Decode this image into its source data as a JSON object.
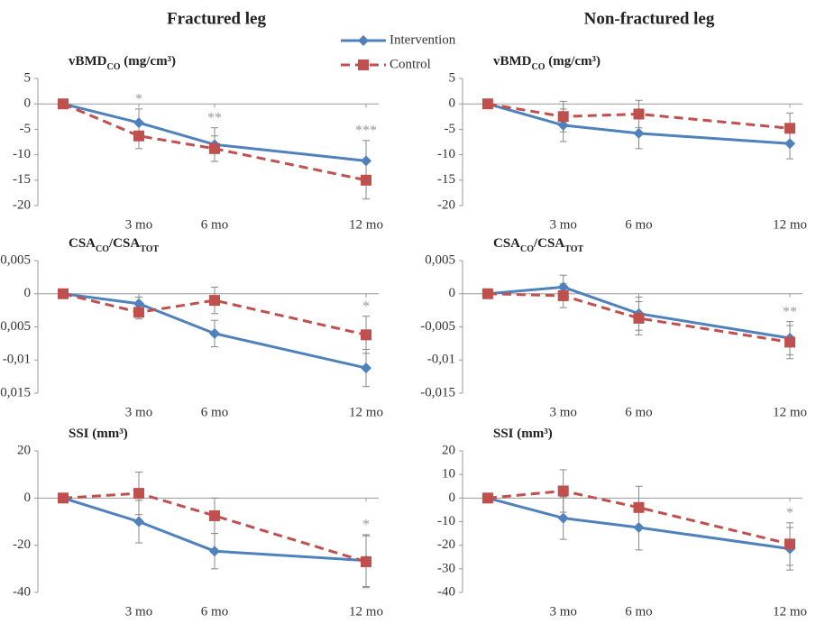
{
  "columns": [
    "Fractured leg",
    "Non-fractured leg"
  ],
  "chart_data": [
    {
      "type": "line",
      "title": [
        "vBMD",
        "CO",
        " (mg/cm³)"
      ],
      "x": [
        0,
        3,
        6,
        12
      ],
      "xlim": [
        -1,
        12.5
      ],
      "xticks": [
        {
          "value": 3,
          "label": "3 mo"
        },
        {
          "value": 6,
          "label": "6 mo"
        },
        {
          "value": 12,
          "label": "12 mo"
        }
      ],
      "ylim": [
        -20,
        5
      ],
      "yticks": [
        5,
        0,
        -5,
        -10,
        -15,
        -20
      ],
      "series": [
        {
          "name": "Intervention",
          "color": "#4f81bd",
          "marker": "diamond",
          "dash": false,
          "values": [
            0,
            -3.7,
            -8,
            -11.2
          ],
          "errors": [
            0,
            2.7,
            3.3,
            4
          ]
        },
        {
          "name": "Control",
          "color": "#c0504d",
          "marker": "square",
          "dash": true,
          "values": [
            0,
            -6.3,
            -8.8,
            -15
          ],
          "errors": [
            0,
            2.5,
            2.5,
            3.7
          ]
        }
      ],
      "annotations": [
        null,
        "*",
        "**",
        "***"
      ]
    },
    {
      "type": "line",
      "title": [
        "vBMD",
        "CO",
        " (mg/cm³)"
      ],
      "x": [
        0,
        3,
        6,
        12
      ],
      "xlim": [
        -1,
        12.5
      ],
      "xticks": [
        {
          "value": 3,
          "label": "3 mo"
        },
        {
          "value": 6,
          "label": "6 mo"
        },
        {
          "value": 12,
          "label": "12 mo"
        }
      ],
      "ylim": [
        -20,
        5
      ],
      "yticks": [
        5,
        0,
        -5,
        -10,
        -15,
        -20
      ],
      "series": [
        {
          "name": "Intervention",
          "color": "#4f81bd",
          "marker": "diamond",
          "dash": false,
          "values": [
            0,
            -4.2,
            -5.8,
            -7.8
          ],
          "errors": [
            0,
            3.2,
            3,
            3
          ]
        },
        {
          "name": "Control",
          "color": "#c0504d",
          "marker": "square",
          "dash": true,
          "values": [
            0,
            -2.5,
            -2,
            -4.8
          ],
          "errors": [
            0,
            3,
            2.7,
            3
          ]
        }
      ],
      "annotations": [
        null,
        null,
        null,
        null
      ]
    },
    {
      "type": "line",
      "title": [
        "CSA",
        "CO",
        "/CSA",
        "TOT"
      ],
      "x": [
        0,
        3,
        6,
        12
      ],
      "xlim": [
        -1,
        12.5
      ],
      "xticks": [
        {
          "value": 3,
          "label": "3 mo"
        },
        {
          "value": 6,
          "label": "6 mo"
        },
        {
          "value": 12,
          "label": "12 mo"
        }
      ],
      "ylim": [
        -0.015,
        0.005
      ],
      "yticks": [
        {
          "value": 0.005,
          "label": "0,005"
        },
        0,
        {
          "value": -0.005,
          "label": "-0,005"
        },
        {
          "value": -0.01,
          "label": "-0,01"
        },
        {
          "value": -0.015,
          "label": "-0,015"
        }
      ],
      "series": [
        {
          "name": "Intervention",
          "color": "#4f81bd",
          "marker": "diamond",
          "dash": false,
          "values": [
            0,
            -0.0015,
            -0.006,
            -0.0112
          ],
          "errors": [
            0,
            0.001,
            0.002,
            0.0028
          ]
        },
        {
          "name": "Control",
          "color": "#c0504d",
          "marker": "square",
          "dash": true,
          "values": [
            0,
            -0.0028,
            -0.001,
            -0.0062
          ],
          "errors": [
            0,
            0.001,
            0.002,
            0.0028
          ]
        }
      ],
      "annotations": [
        null,
        null,
        null,
        "*"
      ]
    },
    {
      "type": "line",
      "title": [
        "CSA",
        "CO",
        "/CSA",
        "TOT"
      ],
      "x": [
        0,
        3,
        6,
        12
      ],
      "xlim": [
        -1,
        12.5
      ],
      "xticks": [
        {
          "value": 3,
          "label": "3 mo"
        },
        {
          "value": 6,
          "label": "6 mo"
        },
        {
          "value": 12,
          "label": "12 mo"
        }
      ],
      "ylim": [
        -0.015,
        0.005
      ],
      "yticks": [
        {
          "value": 0.005,
          "label": "0,005"
        },
        0,
        {
          "value": -0.005,
          "label": "-0,005"
        },
        {
          "value": -0.01,
          "label": "-0,01"
        },
        {
          "value": -0.015,
          "label": "-0,015"
        }
      ],
      "series": [
        {
          "name": "Intervention",
          "color": "#4f81bd",
          "marker": "diamond",
          "dash": false,
          "values": [
            0,
            0.001,
            -0.003,
            -0.0067
          ],
          "errors": [
            0,
            0.0018,
            0.0025,
            0.0025
          ]
        },
        {
          "name": "Control",
          "color": "#c0504d",
          "marker": "square",
          "dash": true,
          "values": [
            0,
            -0.0003,
            -0.0037,
            -0.0073
          ],
          "errors": [
            0,
            0.0018,
            0.0025,
            0.0025
          ]
        }
      ],
      "annotations": [
        null,
        null,
        null,
        "**"
      ]
    },
    {
      "type": "line",
      "title": [
        "SSI (mm³)"
      ],
      "x": [
        0,
        3,
        6,
        12
      ],
      "xlim": [
        -1,
        12.5
      ],
      "xticks": [
        {
          "value": 3,
          "label": "3 mo"
        },
        {
          "value": 6,
          "label": "6 mo"
        },
        {
          "value": 12,
          "label": "12 mo"
        }
      ],
      "ylim": [
        -40,
        20
      ],
      "yticks": [
        20,
        0,
        -20,
        -40
      ],
      "series": [
        {
          "name": "Intervention",
          "color": "#4f81bd",
          "marker": "diamond",
          "dash": false,
          "values": [
            0,
            -10,
            -22.5,
            -26.5
          ],
          "errors": [
            0,
            9,
            7.5,
            11
          ]
        },
        {
          "name": "Control",
          "color": "#c0504d",
          "marker": "square",
          "dash": true,
          "values": [
            0,
            2,
            -7.5,
            -27
          ],
          "errors": [
            0,
            9,
            7.5,
            11
          ]
        }
      ],
      "annotations": [
        null,
        null,
        null,
        "*"
      ]
    },
    {
      "type": "line",
      "title": [
        "SSI (mm³)"
      ],
      "x": [
        0,
        3,
        6,
        12
      ],
      "xlim": [
        -1,
        12.5
      ],
      "xticks": [
        {
          "value": 3,
          "label": "3 mo"
        },
        {
          "value": 6,
          "label": "6 mo"
        },
        {
          "value": 12,
          "label": "12 mo"
        }
      ],
      "ylim": [
        -40,
        20
      ],
      "yticks": [
        20,
        10,
        0,
        -10,
        -20,
        -30,
        -40
      ],
      "series": [
        {
          "name": "Intervention",
          "color": "#4f81bd",
          "marker": "diamond",
          "dash": false,
          "values": [
            0,
            -8.5,
            -12.5,
            -21.5
          ],
          "errors": [
            0,
            9,
            9.5,
            9
          ]
        },
        {
          "name": "Control",
          "color": "#c0504d",
          "marker": "square",
          "dash": true,
          "values": [
            0,
            3,
            -4,
            -19.5
          ],
          "errors": [
            0,
            9,
            9,
            9
          ]
        }
      ],
      "annotations": [
        null,
        null,
        null,
        "*"
      ]
    }
  ]
}
